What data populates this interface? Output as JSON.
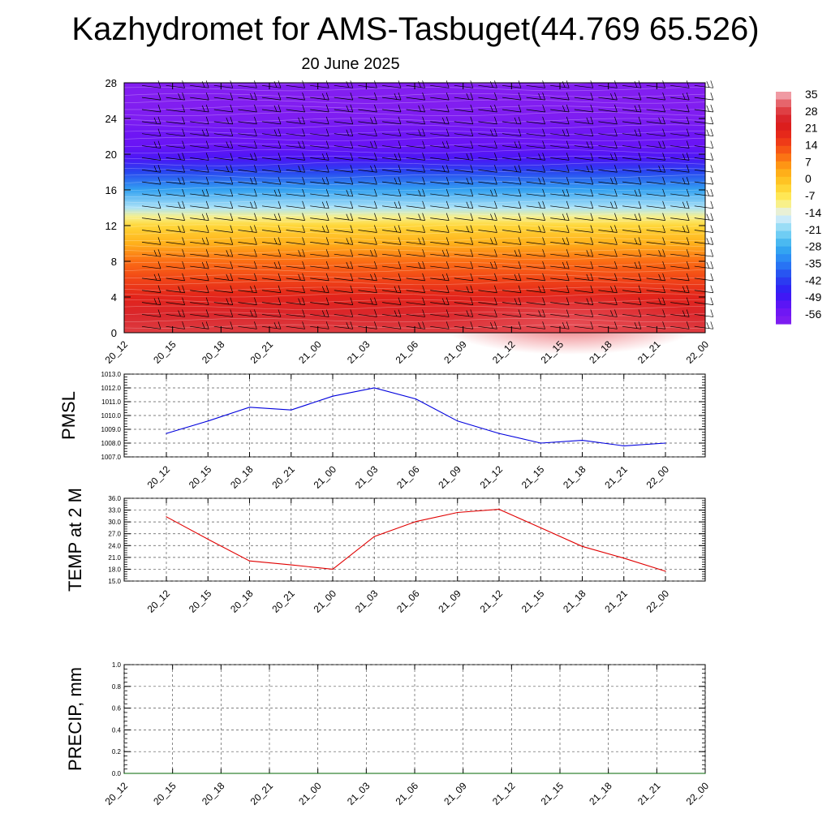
{
  "title": "Kazhydromet for AMS-Tasbuget(44.769 65.526)",
  "subtitle": "20 June 2025",
  "chart_data": [
    {
      "type": "heatmap",
      "name": "cross-section",
      "x_ticks": [
        "20_12",
        "20_15",
        "20_18",
        "20_21",
        "21_00",
        "21_03",
        "21_06",
        "21_09",
        "21_12",
        "21_15",
        "21_18",
        "21_21",
        "22_00"
      ],
      "y_ticks": [
        "0",
        "4",
        "8",
        "12",
        "16",
        "20",
        "24",
        "28"
      ],
      "ylim": [
        0,
        28
      ],
      "colorbar": {
        "labels": [
          "35",
          "28",
          "21",
          "14",
          "7",
          "0",
          "-7",
          "-14",
          "-21",
          "-28",
          "-35",
          "-42",
          "-49",
          "-56"
        ],
        "range": [
          -63,
          42
        ]
      },
      "temperature_profile": {
        "levels": [
          0,
          2,
          4,
          6,
          8,
          10,
          12,
          13,
          14,
          16,
          18,
          19.5,
          21,
          22.5,
          24,
          26,
          28
        ],
        "values": [
          33,
          30,
          24,
          18,
          13,
          5,
          -2,
          -9,
          -18,
          -30,
          -42,
          -52,
          -56,
          -58,
          -62,
          -63,
          -63
        ]
      },
      "wind_barbs": true
    },
    {
      "type": "line",
      "name": "pmsl",
      "ylabel": "PMSL",
      "categories": [
        "20_12",
        "20_15",
        "20_18",
        "20_21",
        "21_00",
        "21_03",
        "21_06",
        "21_09",
        "21_12",
        "21_15",
        "21_18",
        "21_21",
        "22_00"
      ],
      "values": [
        1008.7,
        1009.6,
        1010.6,
        1010.4,
        1011.4,
        1012.0,
        1011.2,
        1009.6,
        1008.7,
        1008.0,
        1008.2,
        1007.8,
        1008.0
      ],
      "ylim": [
        1007,
        1013
      ],
      "y_ticks": [
        "1007.0",
        "1008.0",
        "1009.0",
        "1010.0",
        "1011.0",
        "1012.0",
        "1013.0"
      ],
      "color": "#0000dd",
      "grid": true
    },
    {
      "type": "line",
      "name": "temp",
      "ylabel": "TEMP at 2 M",
      "categories": [
        "20_12",
        "20_15",
        "20_18",
        "20_21",
        "21_00",
        "21_03",
        "21_06",
        "21_09",
        "21_12",
        "21_15",
        "21_18",
        "21_21",
        "22_00"
      ],
      "values": [
        31.3,
        25.6,
        20.1,
        19.1,
        18.0,
        26.3,
        30.1,
        32.4,
        33.2,
        28.5,
        23.8,
        20.8,
        17.5
      ],
      "ylim": [
        15,
        36
      ],
      "y_ticks": [
        "15.0",
        "18.0",
        "21.0",
        "24.0",
        "27.0",
        "30.0",
        "33.0",
        "36.0"
      ],
      "color": "#e00000",
      "grid": true
    },
    {
      "type": "line",
      "name": "precip",
      "ylabel": "PRECIP, mm",
      "categories": [
        "20_12",
        "20_15",
        "20_18",
        "20_21",
        "21_00",
        "21_03",
        "21_06",
        "21_09",
        "21_12",
        "21_15",
        "21_18",
        "21_21",
        "22_00"
      ],
      "values": [
        0,
        0,
        0,
        0,
        0,
        0,
        0,
        0,
        0,
        0,
        0,
        0,
        0
      ],
      "ylim": [
        0,
        1
      ],
      "y_ticks": [
        "0.0",
        "0.2",
        "0.4",
        "0.6",
        "0.8",
        "1.0"
      ],
      "color": "#006400",
      "grid": true
    }
  ]
}
